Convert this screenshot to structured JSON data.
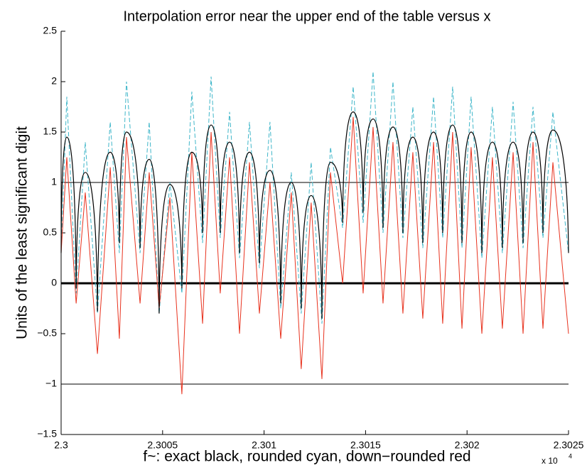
{
  "chart_data": {
    "type": "line",
    "title": "Interpolation error near the upper end of the table versus x",
    "x_label": "f~: exact black, rounded cyan, down−rounded red",
    "y_label": "Units of the least significant digit",
    "x_multiplier": "x 10",
    "x_multiplier_exp": "4",
    "xlim": [
      23000,
      23025
    ],
    "xticks": [
      {
        "value": 23000,
        "label": "2.3"
      },
      {
        "value": 23005,
        "label": "2.3005"
      },
      {
        "value": 23010,
        "label": "2.301"
      },
      {
        "value": 23015,
        "label": "2.3015"
      },
      {
        "value": 23020,
        "label": "2.302"
      },
      {
        "value": 23025,
        "label": "2.3025"
      }
    ],
    "ylim": [
      -1.5,
      2.5
    ],
    "yticks": [
      {
        "value": -1.5,
        "label": "−1.5"
      },
      {
        "value": -1,
        "label": "−1"
      },
      {
        "value": -0.5,
        "label": "−0.5"
      },
      0,
      0.5,
      1,
      1.5,
      2,
      2.5
    ],
    "reference_lines": [
      1,
      0,
      -1
    ],
    "series": [
      {
        "color": "#3fb6c9",
        "dash": true,
        "x": [
          23000.0,
          23000.28,
          23000.74,
          23001.19,
          23001.79,
          23002.42,
          23002.87,
          23003.22,
          23003.89,
          23004.34,
          23004.83,
          23005.36,
          23005.95,
          23006.44,
          23006.97,
          23007.39,
          23007.84,
          23008.3,
          23008.79,
          23009.28,
          23009.77,
          23010.29,
          23010.82,
          23011.34,
          23011.83,
          23012.32,
          23012.85,
          23013.27,
          23013.87,
          23014.39,
          23014.88,
          23015.37,
          23015.86,
          23016.35,
          23016.84,
          23017.33,
          23017.82,
          23018.35,
          23018.8,
          23019.29,
          23019.75,
          23020.2,
          23020.73,
          23021.25,
          23021.74,
          23022.27,
          23022.76,
          23023.25,
          23023.74,
          23024.23,
          23025.0
        ],
        "values": [
          0.3,
          1.85,
          -0.1,
          1.4,
          -0.3,
          1.6,
          0.3,
          2.0,
          0.3,
          1.6,
          -0.3,
          1.0,
          -0.1,
          1.9,
          0.4,
          2.05,
          0.45,
          1.7,
          0.25,
          1.6,
          0.15,
          1.6,
          -0.25,
          1.1,
          -0.3,
          1.2,
          -0.4,
          1.35,
          0.55,
          1.95,
          0.6,
          2.1,
          0.5,
          2.0,
          0.45,
          1.75,
          0.35,
          1.85,
          0.45,
          1.95,
          0.35,
          1.85,
          0.25,
          1.75,
          0.3,
          1.8,
          0.35,
          1.75,
          0.45,
          1.7,
          0.3
        ]
      },
      {
        "color": "#e8321e",
        "dash": false,
        "x": [
          23000.0,
          23000.28,
          23000.74,
          23001.19,
          23001.79,
          23002.42,
          23002.87,
          23003.22,
          23003.89,
          23004.34,
          23004.83,
          23005.36,
          23005.95,
          23006.44,
          23006.97,
          23007.39,
          23007.84,
          23008.3,
          23008.79,
          23009.28,
          23009.77,
          23010.29,
          23010.82,
          23011.34,
          23011.83,
          23012.32,
          23012.85,
          23013.27,
          23013.87,
          23014.39,
          23014.88,
          23015.37,
          23015.86,
          23016.35,
          23016.84,
          23017.33,
          23017.82,
          23018.35,
          23018.8,
          23019.29,
          23019.75,
          23020.2,
          23020.73,
          23021.25,
          23021.74,
          23022.27,
          23022.76,
          23023.25,
          23023.74,
          23024.23,
          23025.0
        ],
        "values": [
          0.3,
          1.25,
          -0.2,
          0.9,
          -0.7,
          1.15,
          -0.55,
          1.45,
          -0.2,
          1.1,
          -0.25,
          0.85,
          -1.1,
          1.3,
          -0.4,
          1.5,
          -0.1,
          1.25,
          -0.5,
          1.2,
          -0.3,
          1.0,
          -0.55,
          0.9,
          -0.85,
          0.8,
          -0.95,
          1.1,
          0.0,
          1.65,
          -0.1,
          1.55,
          -0.2,
          1.4,
          -0.3,
          1.3,
          -0.35,
          1.4,
          -0.4,
          1.5,
          -0.45,
          1.35,
          -0.5,
          1.25,
          -0.45,
          1.3,
          -0.5,
          1.4,
          -0.45,
          1.2,
          -0.5
        ]
      },
      {
        "color": "#000000",
        "dash": false,
        "x": [
          23000.0,
          23000.28,
          23000.74,
          23001.19,
          23001.79,
          23002.42,
          23002.87,
          23003.22,
          23003.89,
          23004.34,
          23004.83,
          23005.36,
          23005.95,
          23006.44,
          23006.97,
          23007.39,
          23007.84,
          23008.3,
          23008.79,
          23009.28,
          23009.77,
          23010.29,
          23010.82,
          23011.34,
          23011.83,
          23012.32,
          23012.85,
          23013.27,
          23013.87,
          23014.39,
          23014.88,
          23015.37,
          23015.86,
          23016.35,
          23016.84,
          23017.33,
          23017.82,
          23018.35,
          23018.8,
          23019.29,
          23019.75,
          23020.2,
          23020.73,
          23021.25,
          23021.74,
          23022.27,
          23022.76,
          23023.25,
          23023.74,
          23024.23,
          23025.0
        ],
        "values": [
          0.3,
          1.45,
          -0.05,
          1.1,
          -0.28,
          1.3,
          0.4,
          1.5,
          0.35,
          1.23,
          -0.3,
          0.98,
          -0.05,
          1.3,
          0.5,
          1.57,
          0.5,
          1.4,
          0.3,
          1.3,
          0.2,
          1.12,
          -0.2,
          1.0,
          -0.25,
          0.87,
          -0.35,
          1.2,
          0.6,
          1.7,
          0.7,
          1.63,
          0.55,
          1.55,
          0.5,
          1.45,
          0.4,
          1.5,
          0.5,
          1.57,
          0.4,
          1.5,
          0.3,
          1.4,
          0.35,
          1.4,
          0.4,
          1.5,
          0.5,
          1.52,
          0.3
        ]
      }
    ]
  }
}
